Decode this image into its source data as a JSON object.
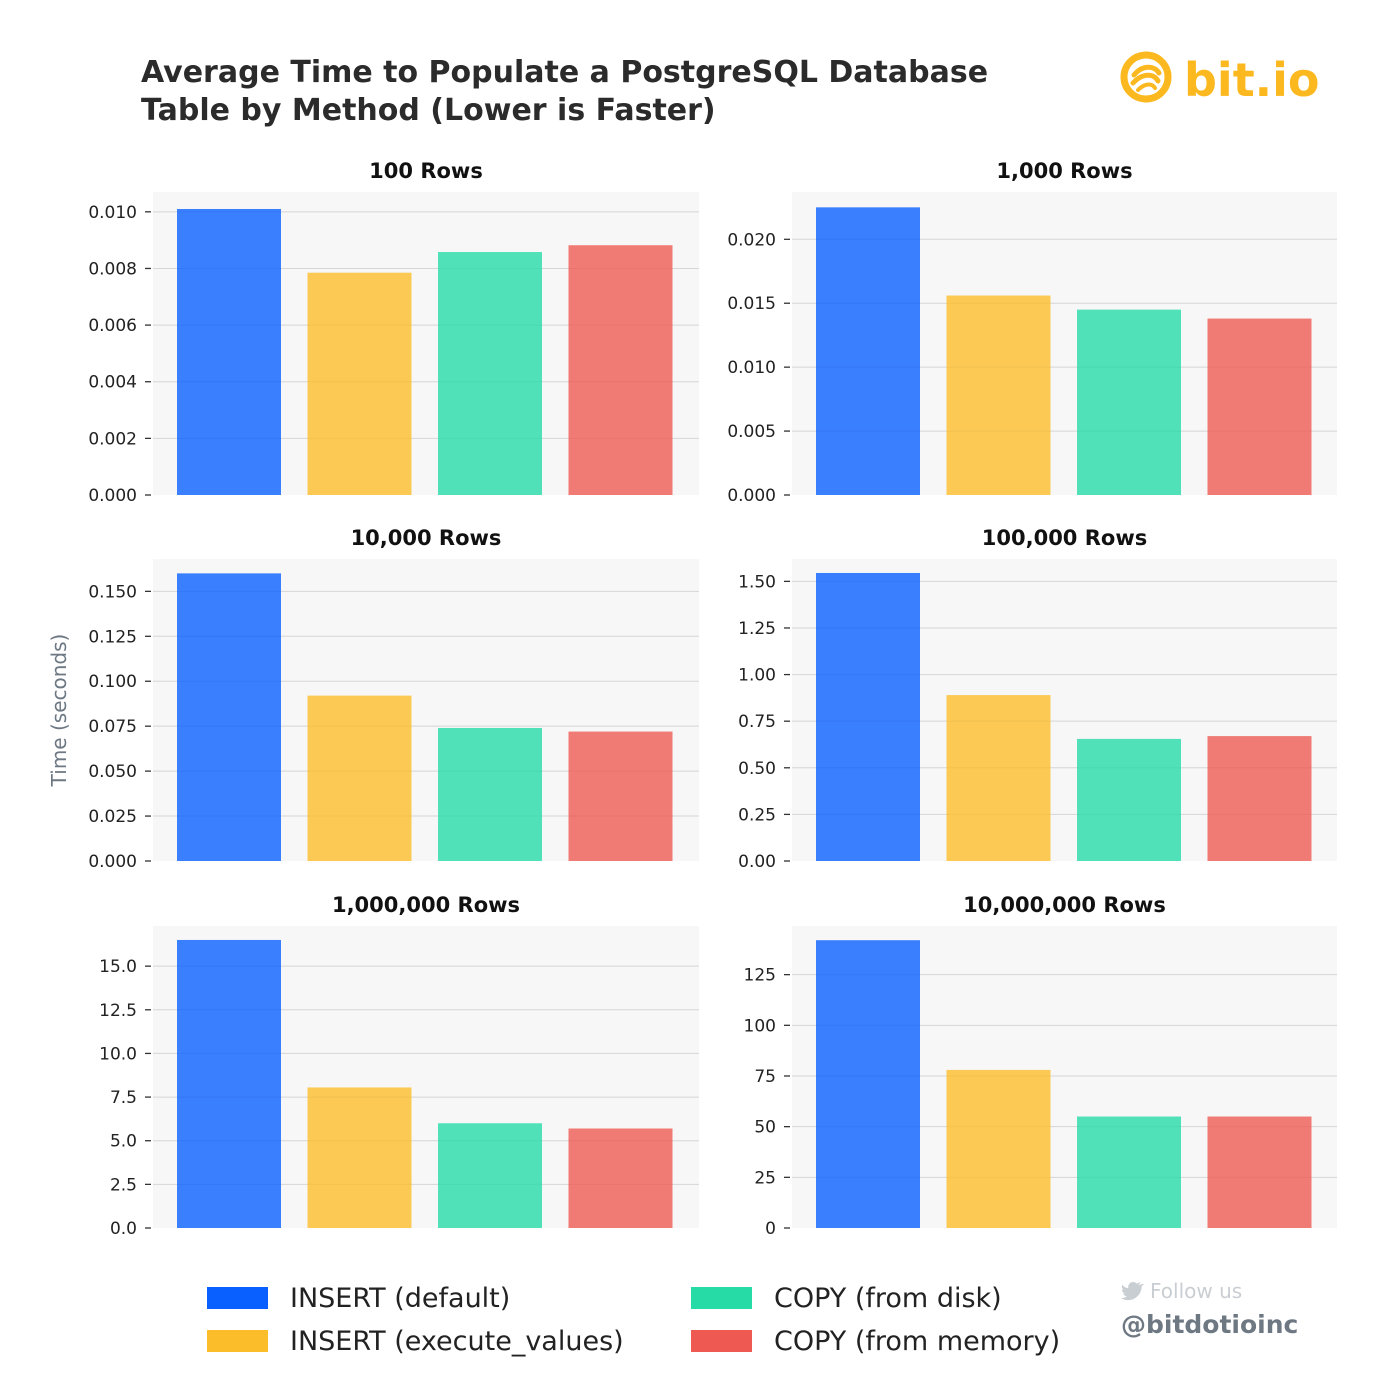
{
  "title_lines": [
    "Average Time to Populate a PostgreSQL Database",
    "Table by Method (Lower is Faster)"
  ],
  "brand": {
    "logo_text": "bit.io",
    "logo_icon": "bitio-swirl-logo-icon",
    "follow_text": "Follow us",
    "follow_icon": "twitter-bird-icon",
    "handle": "@bitdotioinc"
  },
  "colors": {
    "text": "#2b2b2b",
    "muted": "#6d7883",
    "follow_text": "#c9ced3",
    "follow_icon": "#c9ced3",
    "brand": "#fcb81f",
    "panel_bg": "#f7f7f7",
    "grid": "#d6d6d6",
    "tick": "#333333"
  },
  "shared_ylabel": "Time (seconds)",
  "legend": [
    {
      "label": "INSERT (default)",
      "color": "#0a60ff"
    },
    {
      "label": "INSERT (execute_values)",
      "color": "#fbbd2a"
    },
    {
      "label": "COPY (from disk)",
      "color": "#27dba7"
    },
    {
      "label": "COPY (from memory)",
      "color": "#ee5a52"
    }
  ],
  "chart_data": [
    {
      "type": "bar",
      "title": "100 Rows",
      "categories": [
        "INSERT (default)",
        "INSERT (execute_values)",
        "COPY (from disk)",
        "COPY (from memory)"
      ],
      "values": [
        0.0101,
        0.00785,
        0.00858,
        0.00882
      ],
      "ylim": [
        0,
        0.0107
      ],
      "yticks": [
        0,
        0.002,
        0.004,
        0.006,
        0.008,
        0.01
      ],
      "ytick_labels": [
        "0.000",
        "0.002",
        "0.004",
        "0.006",
        "0.008",
        "0.010"
      ],
      "grid": true
    },
    {
      "type": "bar",
      "title": "1,000 Rows",
      "categories": [
        "INSERT (default)",
        "INSERT (execute_values)",
        "COPY (from disk)",
        "COPY (from memory)"
      ],
      "values": [
        0.0225,
        0.0156,
        0.0145,
        0.0138
      ],
      "ylim": [
        0,
        0.0237
      ],
      "yticks": [
        0,
        0.005,
        0.01,
        0.015,
        0.02
      ],
      "ytick_labels": [
        "0.000",
        "0.005",
        "0.010",
        "0.015",
        "0.020"
      ],
      "grid": true
    },
    {
      "type": "bar",
      "title": "10,000 Rows",
      "categories": [
        "INSERT (default)",
        "INSERT (execute_values)",
        "COPY (from disk)",
        "COPY (from memory)"
      ],
      "values": [
        0.16,
        0.092,
        0.074,
        0.072
      ],
      "ylim": [
        0,
        0.168
      ],
      "yticks": [
        0,
        0.025,
        0.05,
        0.075,
        0.1,
        0.125,
        0.15
      ],
      "ytick_labels": [
        "0.000",
        "0.025",
        "0.050",
        "0.075",
        "0.100",
        "0.125",
        "0.150"
      ],
      "grid": true
    },
    {
      "type": "bar",
      "title": "100,000 Rows",
      "categories": [
        "INSERT (default)",
        "INSERT (execute_values)",
        "COPY (from disk)",
        "COPY (from memory)"
      ],
      "values": [
        1.545,
        0.89,
        0.655,
        0.67
      ],
      "ylim": [
        0,
        1.62
      ],
      "yticks": [
        0,
        0.25,
        0.5,
        0.75,
        1.0,
        1.25,
        1.5
      ],
      "ytick_labels": [
        "0.00",
        "0.25",
        "0.50",
        "0.75",
        "1.00",
        "1.25",
        "1.50"
      ],
      "grid": true
    },
    {
      "type": "bar",
      "title": "1,000,000 Rows",
      "categories": [
        "INSERT (default)",
        "INSERT (execute_values)",
        "COPY (from disk)",
        "COPY (from memory)"
      ],
      "values": [
        16.5,
        8.05,
        6.0,
        5.7
      ],
      "ylim": [
        0,
        17.3
      ],
      "yticks": [
        0,
        2.5,
        5.0,
        7.5,
        10.0,
        12.5,
        15.0
      ],
      "ytick_labels": [
        "0.0",
        "2.5",
        "5.0",
        "7.5",
        "10.0",
        "12.5",
        "15.0"
      ],
      "grid": true
    },
    {
      "type": "bar",
      "title": "10,000,000 Rows",
      "categories": [
        "INSERT (default)",
        "INSERT (execute_values)",
        "COPY (from disk)",
        "COPY (from memory)"
      ],
      "values": [
        142,
        78,
        55,
        55
      ],
      "ylim": [
        0,
        149
      ],
      "yticks": [
        0,
        25,
        50,
        75,
        100,
        125
      ],
      "ytick_labels": [
        "0",
        "25",
        "50",
        "75",
        "100",
        "125"
      ],
      "grid": true
    }
  ]
}
